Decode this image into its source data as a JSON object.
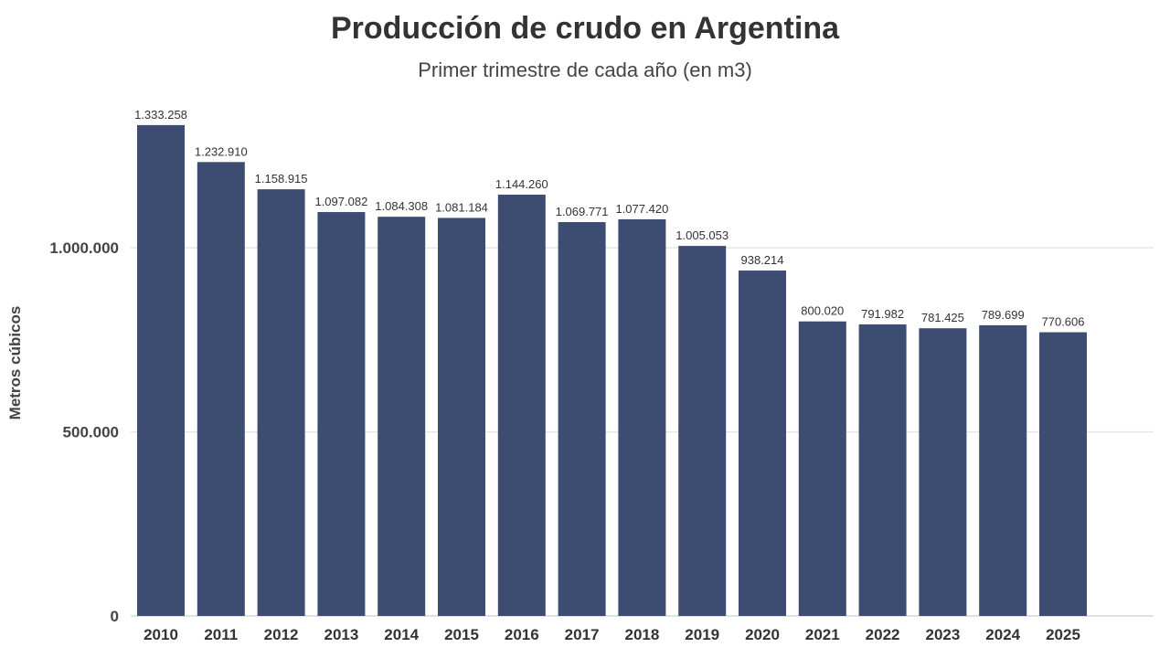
{
  "chart_data": {
    "type": "bar",
    "title": "Producción de crudo en Argentina",
    "subtitle": "Primer trimestre de cada año (en m3)",
    "xlabel": "",
    "ylabel": "Metros cúbicos",
    "ylim": [
      0,
      1400000
    ],
    "yticks": [
      0,
      500000,
      1000000
    ],
    "ytick_labels": [
      "0",
      "500.000",
      "1.000.000"
    ],
    "grid": true,
    "bar_color": "#3D4D72",
    "categories": [
      "2010",
      "2011",
      "2012",
      "2013",
      "2014",
      "2015",
      "2016",
      "2017",
      "2018",
      "2019",
      "2020",
      "2021",
      "2022",
      "2023",
      "2024",
      "2025"
    ],
    "values": [
      1333258,
      1232910,
      1158915,
      1097082,
      1084308,
      1081184,
      1144260,
      1069771,
      1077420,
      1005053,
      938214,
      800020,
      791982,
      781425,
      789699,
      770606
    ],
    "value_labels": [
      "1.333.258",
      "1.232.910",
      "1.158.915",
      "1.097.082",
      "1.084.308",
      "1.081.184",
      "1.144.260",
      "1.069.771",
      "1.077.420",
      "1.005.053",
      "938.214",
      "800.020",
      "791.982",
      "781.425",
      "789.699",
      "770.606"
    ]
  }
}
